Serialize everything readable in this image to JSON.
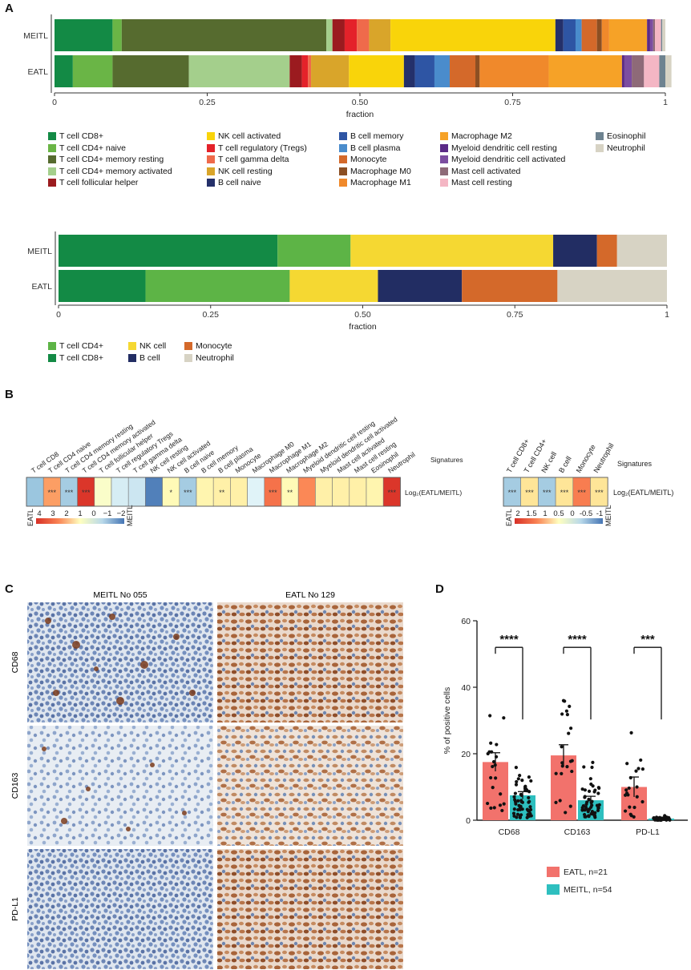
{
  "panels": {
    "a": "A",
    "b": "B",
    "c": "C",
    "d": "D"
  },
  "colors": {
    "T cell CD8+": "#138a45",
    "T cell CD4+ naive": "#6ab546",
    "T cell CD4+ memory resting": "#566b2f",
    "T cell CD4+ memory activated": "#a4cf8c",
    "T cell follicular helper": "#9b1b1f",
    "T cell regulatory (Tregs)": "#e4222a",
    "T cell gamma delta": "#ef6a4b",
    "NK cell resting": "#d9a52a",
    "NK cell activated": "#f9d40a",
    "B cell naive": "#24306a",
    "B cell memory": "#2e55a4",
    "B cell plasma": "#4a8ccc",
    "Monocyte": "#d4692a",
    "Macrophage M0": "#8c4f23",
    "Macrophage M1": "#f0892b",
    "Macrophage M2": "#f6a227",
    "Myeloid dendritic cell resting": "#5b2a86",
    "Myeloid dendritic cell activated": "#7c4da0",
    "Mast cell activated": "#8e6a78",
    "Mast cell resting": "#f4b6c4",
    "Eosinophil": "#6e8390",
    "Neutrophil": "#d7d3c4",
    "T cell CD4+": "#5db446",
    "NK cell": "#f5d832",
    "B cell": "#222d63"
  },
  "chart_data": [
    {
      "type": "bar",
      "orientation": "horizontal-stacked",
      "categories": [
        "MEITL",
        "EATL"
      ],
      "xlabel": "fraction",
      "xlim": [
        0,
        1
      ],
      "xticks": [
        "0",
        "0.25",
        "0.50",
        "0.75",
        "1"
      ],
      "series": [
        {
          "name": "T cell CD8+",
          "values": [
            0.095,
            0.03
          ]
        },
        {
          "name": "T cell CD4+ naive",
          "values": [
            0.015,
            0.065
          ]
        },
        {
          "name": "T cell CD4+ memory resting",
          "values": [
            0.335,
            0.125
          ]
        },
        {
          "name": "T cell CD4+ memory activated",
          "values": [
            0.01,
            0.165
          ]
        },
        {
          "name": "T cell follicular helper",
          "values": [
            0.02,
            0.02
          ]
        },
        {
          "name": "T cell regulatory (Tregs)",
          "values": [
            0.02,
            0.01
          ]
        },
        {
          "name": "T cell gamma delta",
          "values": [
            0.02,
            0.005
          ]
        },
        {
          "name": "NK cell resting",
          "values": [
            0.035,
            0.062
          ]
        },
        {
          "name": "NK cell activated",
          "values": [
            0.27,
            0.09
          ]
        },
        {
          "name": "B cell naive",
          "values": [
            0.013,
            0.018
          ]
        },
        {
          "name": "B cell memory",
          "values": [
            0.02,
            0.032
          ]
        },
        {
          "name": "B cell plasma",
          "values": [
            0.01,
            0.025
          ]
        },
        {
          "name": "Monocyte",
          "values": [
            0.025,
            0.042
          ]
        },
        {
          "name": "Macrophage M0",
          "values": [
            0.008,
            0.007
          ]
        },
        {
          "name": "Macrophage M1",
          "values": [
            0.012,
            0.113
          ]
        },
        {
          "name": "Macrophage M2",
          "values": [
            0.062,
            0.12
          ]
        },
        {
          "name": "Myeloid dendritic cell resting",
          "values": [
            0.005,
            0.004
          ]
        },
        {
          "name": "Myeloid dendritic cell activated",
          "values": [
            0.005,
            0.012
          ]
        },
        {
          "name": "Mast cell activated",
          "values": [
            0.003,
            0.02
          ]
        },
        {
          "name": "Mast cell resting",
          "values": [
            0.01,
            0.025
          ]
        },
        {
          "name": "Eosinophil",
          "values": [
            0.002,
            0.01
          ]
        },
        {
          "name": "Neutrophil",
          "values": [
            0.005,
            0.01
          ]
        }
      ],
      "legend": {
        "placement": "bottom",
        "columns": [
          [
            "T cell CD8+",
            "T cell CD4+ naive",
            "T cell CD4+ memory resting",
            "T cell CD4+ memory activated",
            "T cell follicular helper"
          ],
          [
            "NK cell activated",
            "T cell regulatory (Tregs)",
            "T cell gamma delta",
            "NK cell resting",
            "B cell naive"
          ],
          [
            "B cell memory",
            "B cell plasma",
            "Monocyte",
            "Macrophage M0",
            "Macrophage M1"
          ],
          [
            "Macrophage M2",
            "Myeloid dendritic cell resting",
            "Myeloid dendritic cell activated",
            "Mast cell activated",
            "Mast cell resting"
          ],
          [
            "Eosinophil",
            "Neutrophil"
          ]
        ]
      }
    },
    {
      "type": "bar",
      "orientation": "horizontal-stacked",
      "categories": [
        "MEITL",
        "EATL"
      ],
      "xlabel": "fraction",
      "xlim": [
        0,
        1
      ],
      "xticks": [
        "0",
        "0.25",
        "0.50",
        "0.75",
        "1"
      ],
      "series": [
        {
          "name": "T cell CD8+",
          "values": [
            0.36,
            0.143
          ]
        },
        {
          "name": "T cell CD4+",
          "values": [
            0.12,
            0.237
          ]
        },
        {
          "name": "NK cell",
          "values": [
            0.333,
            0.145
          ]
        },
        {
          "name": "B cell",
          "values": [
            0.072,
            0.138
          ]
        },
        {
          "name": "Monocyte",
          "values": [
            0.033,
            0.157
          ]
        },
        {
          "name": "Neutrophil",
          "values": [
            0.082,
            0.18
          ]
        }
      ],
      "legend": {
        "placement": "bottom",
        "columns": [
          [
            "T cell CD4+",
            "T cell CD8+"
          ],
          [
            "NK cell",
            "B cell"
          ],
          [
            "Monocyte",
            "Neutrophil"
          ]
        ]
      }
    },
    {
      "type": "heatmap",
      "title": "Signatures",
      "row_label": "Log₂(EATL/MEITL)",
      "columns": [
        "T cell CD8",
        "T cell CD4 naive",
        "T cell CD4 memory resting",
        "T cell CD4 memory activated",
        "T cell follicular helper",
        "T cell regulatory Tregs",
        "T cell gamma delta",
        "NK cell resting",
        "NK cell activated",
        "B cell naive",
        "B cell memory",
        "B cell plasma",
        "Monocyte",
        "Macrophage M0",
        "Macrophage M1",
        "Macrophage M2",
        "Myeloid dendritic cell resting",
        "Myeloid dendritic cell activated",
        "Mast cell activated",
        "Mast cell resting",
        "Eosinophil",
        "Neutrophil"
      ],
      "values": [
        -1.1,
        1.6,
        -1.0,
        3.8,
        0.1,
        -0.5,
        -0.6,
        -2.3,
        0.3,
        -1.0,
        0.4,
        0.5,
        0.5,
        -0.4,
        2.3,
        0.3,
        1.9,
        0.5,
        0.5,
        0.5,
        0.4,
        3.8
      ],
      "significance": [
        "",
        "***",
        "***",
        "***",
        "",
        "",
        "",
        "",
        "*",
        "***",
        "",
        "**",
        "",
        "",
        "***",
        "**",
        "",
        "",
        "",
        "",
        "",
        "***"
      ],
      "colorbar": {
        "low_label": "EATL",
        "high_label": "MEITL",
        "ticks": [
          "4",
          "3",
          "2",
          "1",
          "0",
          "−1",
          "−2"
        ]
      }
    },
    {
      "type": "heatmap",
      "title": "Signatures",
      "row_label": "Log₂(EATL/MEITL)",
      "columns": [
        "T cell CD8+",
        "T cell CD4+",
        "NK cell",
        "B cell",
        "Monocyte",
        "Neutrophil"
      ],
      "values": [
        -1.0,
        0.7,
        -1.0,
        0.7,
        2.1,
        0.7
      ],
      "significance": [
        "***",
        "***",
        "***",
        "***",
        "***",
        "***"
      ],
      "colorbar": {
        "low_label": "EATL",
        "high_label": "MEITL",
        "ticks": [
          "2",
          "1.5",
          "1",
          "0.5",
          "0",
          "-0.5",
          "-1"
        ]
      }
    },
    {
      "type": "bar",
      "ylabel": "% of positive cells",
      "ylim": [
        0,
        60
      ],
      "yticks": [
        "0",
        "20",
        "40",
        "60"
      ],
      "categories": [
        "CD68",
        "CD163",
        "PD-L1"
      ],
      "series": [
        {
          "name": "EATL, n=21",
          "color": "#f2726c",
          "values": [
            17.5,
            19.5,
            10.0
          ],
          "sem": [
            2.8,
            3.2,
            3.0
          ]
        },
        {
          "name": "MEITL, n=54",
          "color": "#2ebfbf",
          "values": [
            7.5,
            6.0,
            0.5
          ],
          "sem": [
            1.1,
            1.2,
            0.4
          ]
        }
      ],
      "significance": [
        "****",
        "****",
        "***"
      ],
      "legend": {
        "placement": "bottom"
      }
    }
  ],
  "micrographs": {
    "col_titles": [
      "MEITL No 055",
      "EATL No 129"
    ],
    "row_labels": [
      "CD68",
      "CD163",
      "PD-L1"
    ]
  }
}
